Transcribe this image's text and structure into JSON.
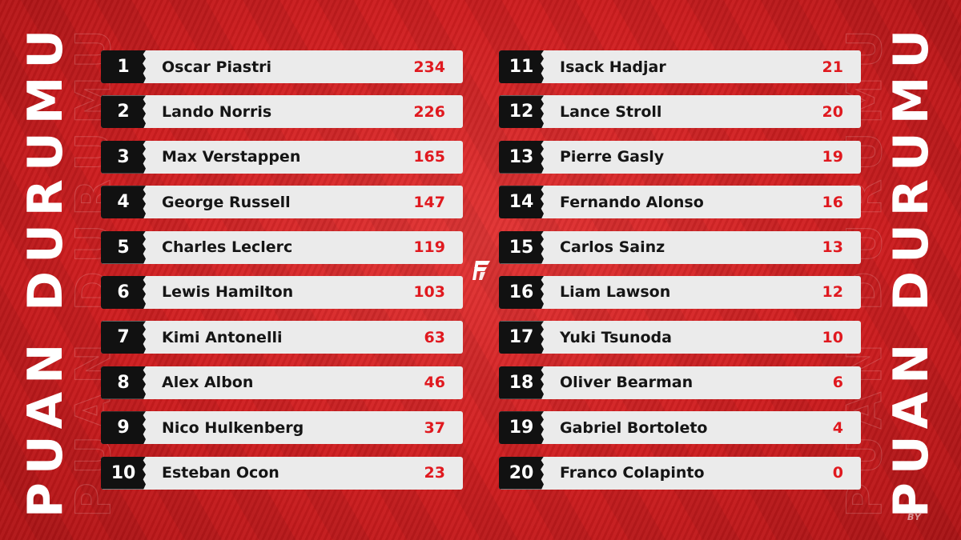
{
  "side_title": "PUAN DURUMU",
  "credit": "BY",
  "logo_icon": "f-logo-icon",
  "colors": {
    "background": "#d4202a",
    "row": "#ebebeb",
    "position_badge": "#111111",
    "points": "#e0191f"
  },
  "standings_left": [
    {
      "pos": "1",
      "name": "Oscar Piastri",
      "pts": "234"
    },
    {
      "pos": "2",
      "name": "Lando Norris",
      "pts": "226"
    },
    {
      "pos": "3",
      "name": "Max Verstappen",
      "pts": "165"
    },
    {
      "pos": "4",
      "name": "George Russell",
      "pts": "147"
    },
    {
      "pos": "5",
      "name": "Charles Leclerc",
      "pts": "119"
    },
    {
      "pos": "6",
      "name": "Lewis Hamilton",
      "pts": "103"
    },
    {
      "pos": "7",
      "name": "Kimi Antonelli",
      "pts": "63"
    },
    {
      "pos": "8",
      "name": "Alex Albon",
      "pts": "46"
    },
    {
      "pos": "9",
      "name": "Nico Hulkenberg",
      "pts": "37"
    },
    {
      "pos": "10",
      "name": "Esteban Ocon",
      "pts": "23"
    }
  ],
  "standings_right": [
    {
      "pos": "11",
      "name": "Isack Hadjar",
      "pts": "21"
    },
    {
      "pos": "12",
      "name": "Lance Stroll",
      "pts": "20"
    },
    {
      "pos": "13",
      "name": "Pierre Gasly",
      "pts": "19"
    },
    {
      "pos": "14",
      "name": "Fernando Alonso",
      "pts": "16"
    },
    {
      "pos": "15",
      "name": "Carlos Sainz",
      "pts": "13"
    },
    {
      "pos": "16",
      "name": "Liam Lawson",
      "pts": "12"
    },
    {
      "pos": "17",
      "name": "Yuki Tsunoda",
      "pts": "10"
    },
    {
      "pos": "18",
      "name": "Oliver Bearman",
      "pts": "6"
    },
    {
      "pos": "19",
      "name": "Gabriel Bortoleto",
      "pts": "4"
    },
    {
      "pos": "20",
      "name": "Franco Colapinto",
      "pts": "0"
    }
  ]
}
